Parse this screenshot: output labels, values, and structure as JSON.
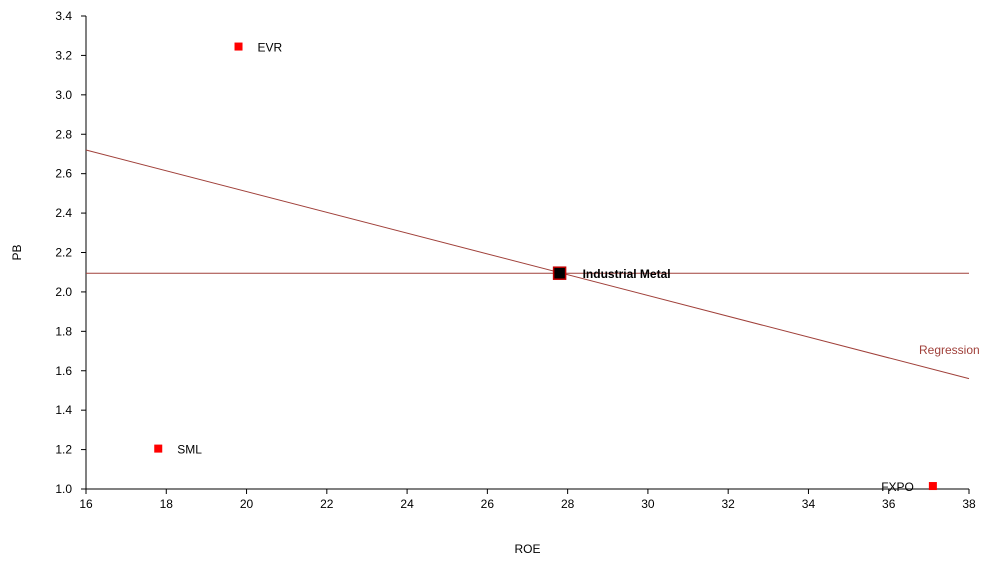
{
  "chart_data": {
    "type": "scatter",
    "xlabel": "ROE",
    "ylabel": "PB",
    "xlim": [
      16,
      38
    ],
    "ylim": [
      1.0,
      3.4
    ],
    "x_ticks": [
      "16",
      "18",
      "20",
      "22",
      "24",
      "26",
      "28",
      "30",
      "32",
      "34",
      "36",
      "38"
    ],
    "y_ticks": [
      "1.0",
      "1.2",
      "1.4",
      "1.6",
      "1.8",
      "2.0",
      "2.2",
      "2.4",
      "2.6",
      "2.8",
      "3.0",
      "3.2",
      "3.4"
    ],
    "grid": false,
    "points": [
      {
        "label": "EVR",
        "x": 19.8,
        "y": 3.245,
        "color": "#ff0000",
        "highlight": false
      },
      {
        "label": "SML",
        "x": 17.8,
        "y": 1.205,
        "color": "#ff0000",
        "highlight": false
      },
      {
        "label": "FXPO",
        "x": 37.1,
        "y": 1.015,
        "color": "#ff0000",
        "highlight": false
      },
      {
        "label": "Industrial Metal",
        "x": 27.8,
        "y": 2.095,
        "color": "#000000",
        "border": "#c00000",
        "highlight": true
      }
    ],
    "average_line": {
      "y": 2.095,
      "color": "#a0403a"
    },
    "regression": {
      "label": "Regression",
      "x_start": 16,
      "y_start": 2.72,
      "x_end": 38,
      "y_end": 1.56,
      "color": "#a0403a"
    }
  }
}
